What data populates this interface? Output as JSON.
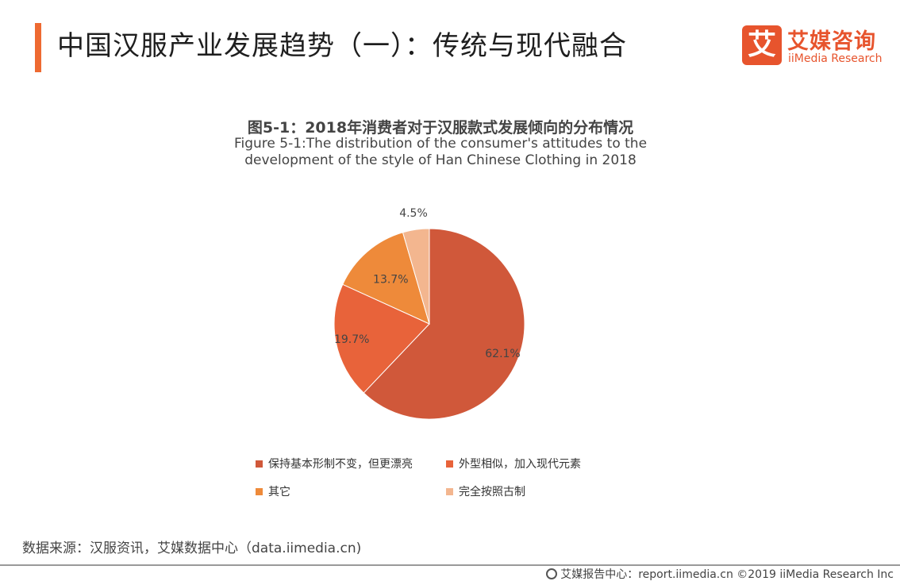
{
  "header": {
    "title": "中国汉服产业发展趋势（一）：传统与现代融合",
    "logo_mark": "艾",
    "logo_cn": "艾媒咨询",
    "logo_en": "iiMedia Research"
  },
  "chart_data": {
    "type": "pie",
    "title": "图5-1：2018年消费者对于汉服款式发展倾向的分布情况",
    "subtitle_line1": "Figure 5-1:The distribution of the consumer's attitudes to the",
    "subtitle_line2": "development of the style of Han Chinese Clothing in 2018",
    "legend_position": "bottom",
    "slices": [
      {
        "label": "保持基本形制不变，但更漂亮",
        "value": 62.1,
        "display": "62.1%",
        "color": "#d0583a"
      },
      {
        "label": "外型相似，加入现代元素",
        "value": 19.7,
        "display": "19.7%",
        "color": "#e8633a"
      },
      {
        "label": "其它",
        "value": 13.7,
        "display": "13.7%",
        "color": "#ee8a3a"
      },
      {
        "label": "完全按照古制",
        "value": 4.5,
        "display": "4.5%",
        "color": "#f3b68f"
      }
    ]
  },
  "footer": {
    "source": "数据来源：汉服资讯，艾媒数据中心（data.iimedia.cn)",
    "copyright": "艾媒报告中心：report.iimedia.cn  ©2019  iiMedia Research  Inc"
  }
}
